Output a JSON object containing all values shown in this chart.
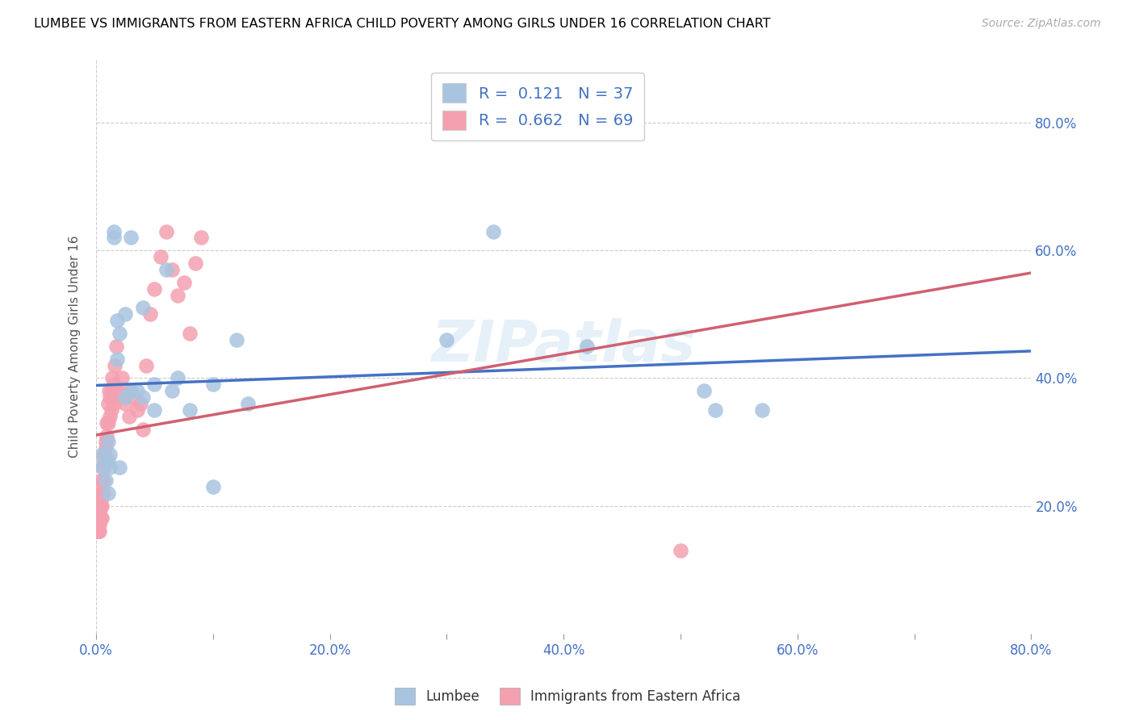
{
  "title": "LUMBEE VS IMMIGRANTS FROM EASTERN AFRICA CHILD POVERTY AMONG GIRLS UNDER 16 CORRELATION CHART",
  "source": "Source: ZipAtlas.com",
  "ylabel": "Child Poverty Among Girls Under 16",
  "xlim": [
    0.0,
    0.8
  ],
  "ylim": [
    0.0,
    0.9
  ],
  "watermark": "ZIPatlas",
  "legend_blue_r": "0.121",
  "legend_blue_n": "37",
  "legend_pink_r": "0.662",
  "legend_pink_n": "69",
  "legend_label_blue": "Lumbee",
  "legend_label_pink": "Immigrants from Eastern Africa",
  "blue_color": "#a8c4e0",
  "pink_color": "#f4a0b0",
  "line_blue_color": "#4472c4",
  "line_pink_color": "#d06070",
  "lumbee_x": [
    0.005,
    0.005,
    0.008,
    0.01,
    0.01,
    0.01,
    0.012,
    0.012,
    0.015,
    0.015,
    0.018,
    0.018,
    0.02,
    0.02,
    0.025,
    0.025,
    0.03,
    0.03,
    0.035,
    0.04,
    0.04,
    0.05,
    0.05,
    0.06,
    0.065,
    0.07,
    0.08,
    0.1,
    0.1,
    0.12,
    0.13,
    0.3,
    0.34,
    0.42,
    0.52,
    0.53,
    0.57
  ],
  "lumbee_y": [
    0.26,
    0.28,
    0.24,
    0.27,
    0.3,
    0.22,
    0.28,
    0.26,
    0.63,
    0.62,
    0.49,
    0.43,
    0.47,
    0.26,
    0.5,
    0.37,
    0.62,
    0.38,
    0.38,
    0.51,
    0.37,
    0.39,
    0.35,
    0.57,
    0.38,
    0.4,
    0.35,
    0.39,
    0.23,
    0.46,
    0.36,
    0.46,
    0.63,
    0.45,
    0.38,
    0.35,
    0.35
  ],
  "eastern_africa_x": [
    0.001,
    0.001,
    0.001,
    0.001,
    0.002,
    0.002,
    0.002,
    0.002,
    0.002,
    0.003,
    0.003,
    0.003,
    0.003,
    0.003,
    0.003,
    0.004,
    0.004,
    0.004,
    0.004,
    0.005,
    0.005,
    0.005,
    0.005,
    0.005,
    0.006,
    0.006,
    0.006,
    0.007,
    0.007,
    0.008,
    0.008,
    0.008,
    0.009,
    0.009,
    0.01,
    0.01,
    0.011,
    0.012,
    0.012,
    0.013,
    0.013,
    0.014,
    0.015,
    0.015,
    0.016,
    0.017,
    0.018,
    0.02,
    0.022,
    0.025,
    0.026,
    0.028,
    0.03,
    0.032,
    0.035,
    0.038,
    0.04,
    0.043,
    0.046,
    0.05,
    0.055,
    0.06,
    0.065,
    0.07,
    0.075,
    0.08,
    0.085,
    0.09,
    0.5
  ],
  "eastern_africa_y": [
    0.18,
    0.19,
    0.17,
    0.16,
    0.2,
    0.19,
    0.18,
    0.17,
    0.16,
    0.21,
    0.2,
    0.19,
    0.18,
    0.17,
    0.16,
    0.22,
    0.21,
    0.2,
    0.18,
    0.24,
    0.23,
    0.22,
    0.2,
    0.18,
    0.26,
    0.24,
    0.22,
    0.28,
    0.27,
    0.3,
    0.29,
    0.27,
    0.33,
    0.31,
    0.36,
    0.33,
    0.38,
    0.37,
    0.34,
    0.38,
    0.35,
    0.4,
    0.39,
    0.36,
    0.42,
    0.45,
    0.38,
    0.37,
    0.4,
    0.36,
    0.38,
    0.34,
    0.38,
    0.37,
    0.35,
    0.36,
    0.32,
    0.42,
    0.5,
    0.54,
    0.59,
    0.63,
    0.57,
    0.53,
    0.55,
    0.47,
    0.58,
    0.62,
    0.13
  ]
}
